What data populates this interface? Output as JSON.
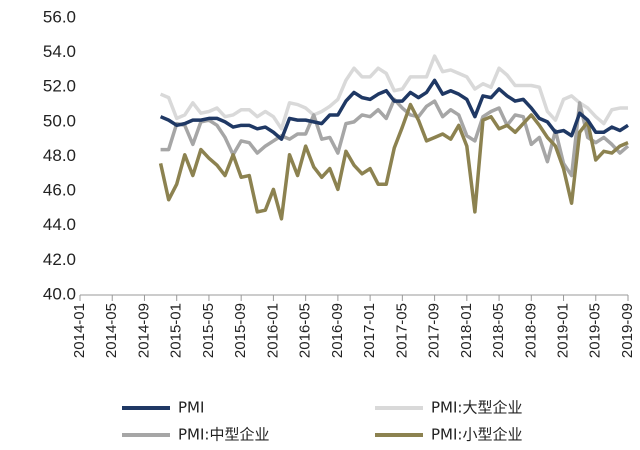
{
  "chart_data": {
    "type": "line",
    "categories": [
      "2014-01",
      null,
      null,
      null,
      "2014-05",
      null,
      null,
      null,
      "2014-09",
      null,
      null,
      null,
      "2015-01",
      null,
      null,
      null,
      "2015-05",
      null,
      null,
      null,
      "2015-09",
      null,
      null,
      null,
      "2016-01",
      null,
      null,
      null,
      "2016-05",
      null,
      null,
      null,
      "2016-09",
      null,
      null,
      null,
      "2017-01",
      null,
      null,
      null,
      "2017-05",
      null,
      null,
      null,
      "2017-09",
      null,
      null,
      null,
      "2018-01",
      null,
      null,
      null,
      "2018-05",
      null,
      null,
      null,
      "2018-09",
      null,
      null,
      null,
      "2019-01",
      null,
      null,
      null,
      "2019-05",
      null,
      null,
      null,
      "2019-09"
    ],
    "series": [
      {
        "name": "PMI",
        "color": "#1f3864",
        "values": [
          null,
          null,
          null,
          null,
          null,
          null,
          null,
          null,
          null,
          null,
          50.3,
          50.1,
          49.8,
          49.9,
          50.1,
          50.1,
          50.2,
          50.2,
          50.0,
          49.7,
          49.8,
          49.8,
          49.6,
          49.7,
          49.4,
          49.0,
          50.2,
          50.1,
          50.1,
          50.0,
          49.9,
          50.4,
          50.4,
          51.2,
          51.7,
          51.4,
          51.3,
          51.6,
          51.8,
          51.2,
          51.2,
          51.7,
          51.4,
          51.7,
          52.4,
          51.6,
          51.8,
          51.6,
          51.3,
          50.3,
          51.5,
          51.4,
          51.9,
          51.5,
          51.2,
          51.3,
          50.8,
          50.2,
          50.0,
          49.4,
          49.5,
          49.2,
          50.5,
          50.1,
          49.4,
          49.4,
          49.7,
          49.5,
          49.8
        ]
      },
      {
        "name": "PMI:大型企业",
        "color": "#d9d9d9",
        "values": [
          null,
          null,
          null,
          null,
          null,
          null,
          null,
          null,
          null,
          null,
          51.6,
          51.4,
          50.2,
          50.4,
          51.1,
          50.5,
          50.6,
          50.8,
          50.3,
          50.4,
          50.7,
          50.7,
          50.3,
          50.6,
          50.3,
          49.6,
          51.1,
          51.0,
          50.8,
          50.4,
          50.6,
          50.9,
          51.3,
          52.4,
          53.1,
          52.6,
          52.6,
          53.1,
          52.8,
          51.8,
          51.9,
          52.6,
          52.6,
          52.6,
          53.8,
          52.9,
          53.0,
          52.8,
          52.6,
          51.9,
          52.2,
          52.0,
          53.1,
          52.7,
          52.1,
          52.1,
          52.1,
          52.0,
          50.6,
          50.1,
          51.3,
          51.5,
          51.1,
          50.8,
          50.3,
          49.9,
          50.7,
          50.8,
          50.8
        ]
      },
      {
        "name": "PMI:中型企业",
        "color": "#a6a6a6",
        "values": [
          null,
          null,
          null,
          null,
          null,
          null,
          null,
          null,
          null,
          null,
          48.4,
          48.4,
          49.9,
          49.8,
          48.7,
          50.0,
          50.1,
          49.8,
          49.1,
          48.1,
          48.9,
          48.8,
          48.2,
          48.6,
          48.9,
          49.2,
          49.0,
          49.3,
          49.3,
          50.4,
          49.0,
          49.1,
          48.2,
          49.9,
          50.0,
          50.4,
          50.3,
          50.7,
          50.2,
          51.3,
          50.8,
          50.4,
          50.3,
          50.9,
          51.2,
          50.3,
          50.7,
          50.4,
          49.2,
          48.9,
          50.3,
          50.6,
          50.8,
          49.8,
          50.4,
          50.3,
          48.7,
          49.1,
          47.7,
          49.5,
          47.6,
          46.9,
          51.1,
          49.1,
          48.8,
          49.1,
          48.7,
          48.2,
          48.6
        ]
      },
      {
        "name": "PMI:小型企业",
        "color": "#8c8250",
        "values": [
          null,
          null,
          null,
          null,
          null,
          null,
          null,
          null,
          null,
          null,
          47.6,
          45.5,
          46.4,
          48.1,
          46.9,
          48.4,
          47.9,
          47.5,
          46.9,
          48.1,
          46.8,
          46.9,
          44.8,
          44.9,
          46.1,
          44.4,
          48.1,
          46.9,
          48.6,
          47.4,
          46.8,
          47.3,
          46.1,
          48.3,
          47.5,
          47.0,
          47.3,
          46.4,
          46.4,
          48.5,
          49.7,
          51.0,
          50.1,
          48.9,
          49.1,
          49.3,
          49.0,
          49.8,
          48.6,
          44.8,
          50.1,
          50.3,
          49.6,
          49.8,
          49.4,
          49.9,
          50.4,
          49.8,
          49.1,
          48.6,
          47.3,
          45.3,
          49.4,
          50.0,
          47.8,
          48.3,
          48.2,
          48.6,
          48.8
        ]
      }
    ],
    "ylim": [
      40,
      56
    ],
    "yticks": [
      {
        "value": 40,
        "label": "40.0"
      },
      {
        "value": 42,
        "label": "42.0"
      },
      {
        "value": 44,
        "label": "44.0"
      },
      {
        "value": 46,
        "label": "46.0"
      },
      {
        "value": 48,
        "label": "48.0"
      },
      {
        "value": 50,
        "label": "50.0"
      },
      {
        "value": 52,
        "label": "52.0"
      },
      {
        "value": 54,
        "label": "54.0"
      },
      {
        "value": 56,
        "label": "56.0"
      }
    ],
    "grid": false
  }
}
